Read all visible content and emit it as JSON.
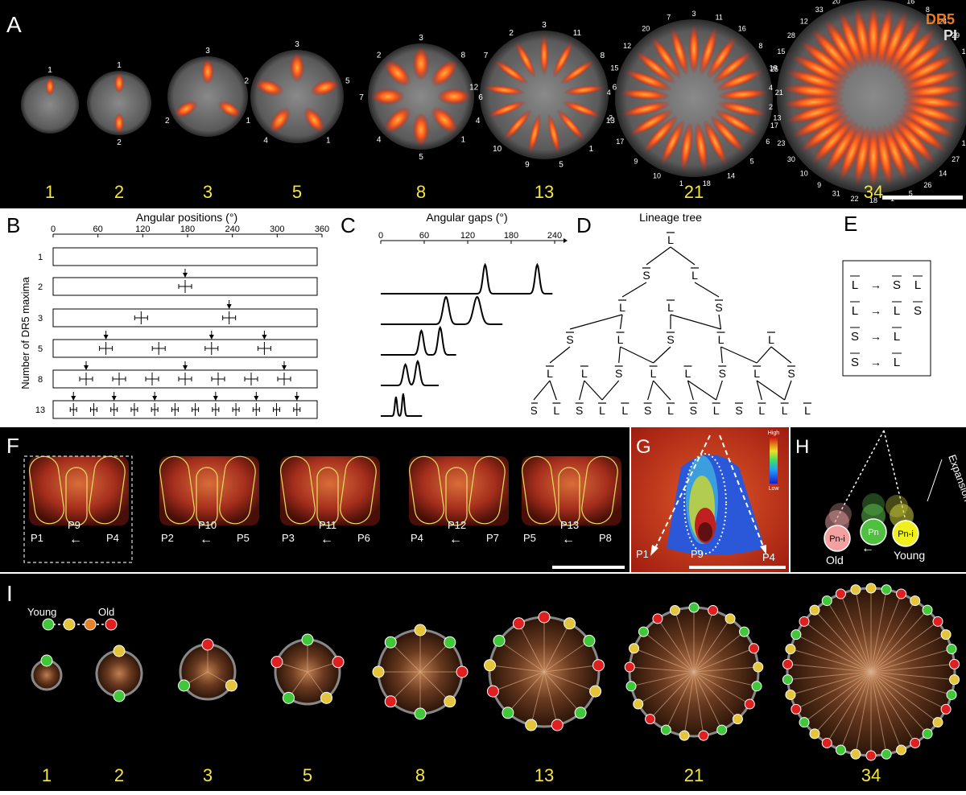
{
  "panels": {
    "A": {
      "label": "A",
      "legend": {
        "dr5": "DR5",
        "pi": "PI"
      },
      "stages": [
        {
          "count": "1",
          "labels": [
            "1"
          ]
        },
        {
          "count": "2",
          "labels": [
            "1",
            "2"
          ]
        },
        {
          "count": "3",
          "labels": [
            "3",
            "1",
            "2"
          ]
        },
        {
          "count": "5",
          "labels": [
            "3",
            "5",
            "1",
            "4",
            "2"
          ]
        },
        {
          "count": "8",
          "labels": [
            "3",
            "8",
            "6",
            "1",
            "5",
            "4",
            "7",
            "2"
          ]
        },
        {
          "count": "13",
          "labels": [
            "3",
            "11",
            "8",
            "6",
            "13",
            "1",
            "5",
            "9",
            "10",
            "4",
            "12",
            "7",
            "2"
          ]
        },
        {
          "count": "21",
          "labels": [
            "3",
            "11",
            "16",
            "8",
            "19",
            "21",
            "13",
            "6",
            "5",
            "14",
            "18",
            "1",
            "10",
            "9",
            "17",
            "2",
            "4",
            "15",
            "12",
            "20",
            "7"
          ]
        },
        {
          "count": "34",
          "labels": [
            "3",
            "11",
            "16",
            "8",
            "24",
            "29",
            "19",
            "32",
            "21",
            "6",
            "34",
            "13",
            "27",
            "14",
            "26",
            "5",
            "1",
            "18",
            "22",
            "31",
            "9",
            "10",
            "30",
            "23",
            "17",
            "2",
            "4",
            "25",
            "15",
            "28",
            "12",
            "33",
            "20",
            "7"
          ]
        }
      ]
    },
    "B": {
      "label": "B",
      "title": "Angular positions (°)",
      "ylabel": "Number of DR5 maxima",
      "ticks": [
        "0",
        "60",
        "120",
        "180",
        "240",
        "300",
        "360"
      ],
      "rows": [
        "1",
        "2",
        "3",
        "5",
        "8",
        "13"
      ]
    },
    "C": {
      "label": "C",
      "title": "Angular gaps (°)",
      "ticks": [
        "0",
        "60",
        "120",
        "180",
        "240"
      ]
    },
    "D": {
      "label": "D",
      "title": "Lineage tree",
      "levels": [
        [
          "L"
        ],
        [
          "S",
          "L"
        ],
        [
          "L",
          "L",
          "S"
        ],
        [
          "S",
          "L",
          "S",
          "L",
          "L"
        ],
        [
          "L",
          "L",
          "S",
          "L",
          "L",
          "S",
          "L",
          "S"
        ],
        [
          "S",
          "L",
          "S",
          "L",
          "L",
          "S",
          "L",
          "S",
          "L",
          "S",
          "L",
          "L",
          "L"
        ]
      ]
    },
    "E": {
      "label": "E",
      "rules": [
        {
          "from": "L",
          "to": [
            "S",
            "L"
          ]
        },
        {
          "from": "L",
          "to": [
            "L",
            "S"
          ]
        },
        {
          "from": "S",
          "to": [
            "L"
          ]
        },
        {
          "from": "S",
          "to": [
            "L"
          ]
        }
      ],
      "arrow": "→"
    },
    "F": {
      "label": "F",
      "groups": [
        {
          "left": "P1",
          "mid": "P9",
          "right": "P4"
        },
        {
          "left": "P2",
          "mid": "P10",
          "right": "P5"
        },
        {
          "left": "P3",
          "mid": "P11",
          "right": "P6"
        },
        {
          "left": "P4",
          "mid": "P12",
          "right": "P7"
        },
        {
          "left": "P5",
          "mid": "P13",
          "right": "P8"
        }
      ],
      "arrow": "←"
    },
    "G": {
      "label": "G",
      "scale_high": "High",
      "scale_low": "Low",
      "left": "P1",
      "mid": "P9",
      "right": "P4"
    },
    "H": {
      "label": "H",
      "old_node": "Pn-i",
      "mid_node": "Pn",
      "young_node": "Pn-i",
      "old_label": "Old",
      "young_label": "Young",
      "expansion": "Expansion",
      "arrow": "←"
    },
    "I": {
      "label": "I",
      "legend_young": "Young",
      "legend_old": "Old",
      "stages": [
        "1",
        "2",
        "3",
        "5",
        "8",
        "13",
        "21",
        "34"
      ]
    }
  },
  "colors": {
    "yellow_text": "#f5e63a",
    "dr5": "#f07a1a",
    "young": "#41c83a",
    "mid": "#e3c43a",
    "orange": "#e8822a",
    "old": "#e02020"
  }
}
